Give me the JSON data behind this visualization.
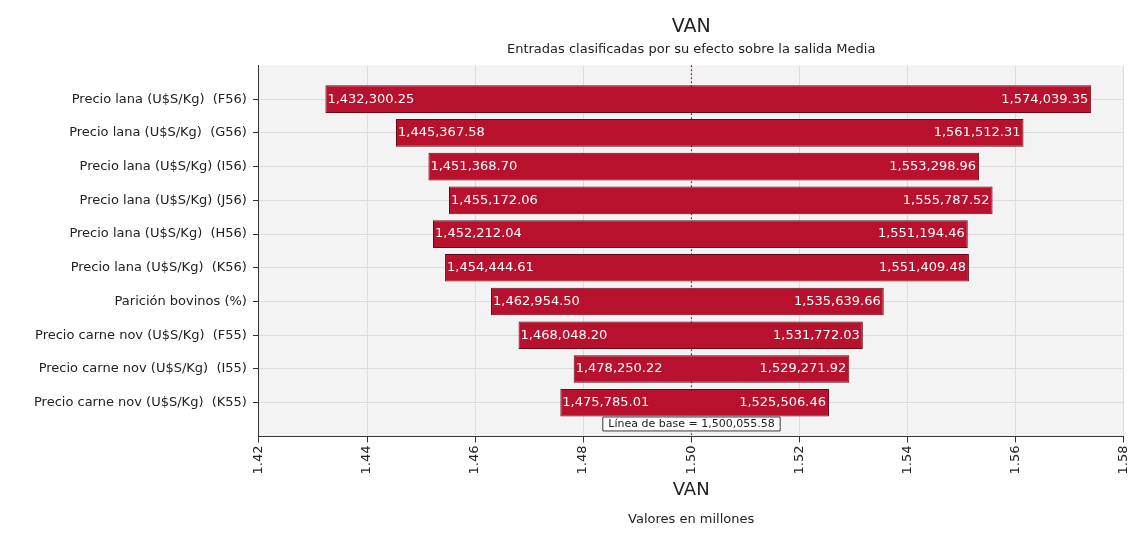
{
  "chart_data": {
    "type": "bar",
    "orientation": "horizontal",
    "title": "VAN",
    "subtitle": "Entradas clasificadas por su efecto sobre la salida Media",
    "xlabel": "VAN",
    "categories": [
      "Precio lana (U$S/Kg)  (F56)",
      "Precio lana (U$S/Kg)  (G56)",
      "Precio lana (U$S/Kg) (I56)",
      "Precio lana (U$S/Kg) (J56)",
      "Precio lana (U$S/Kg)  (H56)",
      "Precio lana (U$S/Kg)  (K56)",
      "Parición bovinos (%)",
      "Precio carne nov (U$S/Kg)  (F55)",
      "Precio carne nov (U$S/Kg)  (I55)",
      "Precio carne nov (U$S/Kg)  (K55)"
    ],
    "base": [
      1.43230025,
      1.44536758,
      1.4513687,
      1.45517206,
      1.45221204,
      1.45444461,
      1.4629545,
      1.4680482,
      1.47825022,
      1.47578501
    ],
    "values": [
      0.1417391,
      0.11614473,
      0.10193026,
      0.10061546,
      0.09898242,
      0.09696487,
      0.07268516,
      0.06372383,
      0.0510217,
      0.04972145
    ],
    "color": "#b8112e",
    "xlim": [
      1.42,
      1.58
    ],
    "xticks": [
      1.42,
      1.44,
      1.46,
      1.48,
      {
        "value": 1.5,
        "label": "1.50"
      },
      1.52,
      1.54,
      1.56,
      1.58
    ],
    "grid": true,
    "ref_lines": [
      {
        "axis": "x",
        "value": 1.50005558,
        "label": "Línea de base = 1,500,055.58",
        "color": "#7a1a2a",
        "line_style": "dotted"
      }
    ],
    "annotations": [
      {
        "text": "1,432,300.25",
        "x": 1.43230025,
        "y": "Precio lana (U$S/Kg)  (F56)"
      },
      {
        "text": "1,574,039.35",
        "x": 1.57403935,
        "y": "Precio lana (U$S/Kg)  (F56)"
      },
      {
        "text": "1,445,367.58",
        "x": 1.44536758,
        "y": "Precio lana (U$S/Kg)  (G56)"
      },
      {
        "text": "1,561,512.31",
        "x": 1.56151231,
        "y": "Precio lana (U$S/Kg)  (G56)"
      },
      {
        "text": "1,451,368.70",
        "x": 1.4513687,
        "y": "Precio lana (U$S/Kg) (I56)"
      },
      {
        "text": "1,553,298.96",
        "x": 1.55329896,
        "y": "Precio lana (U$S/Kg) (I56)"
      },
      {
        "text": "1,455,172.06",
        "x": 1.45517206,
        "y": "Precio lana (U$S/Kg) (J56)"
      },
      {
        "text": "1,555,787.52",
        "x": 1.55578752,
        "y": "Precio lana (U$S/Kg) (J56)"
      },
      {
        "text": "1,452,212.04",
        "x": 1.45221204,
        "y": "Precio lana (U$S/Kg)  (H56)"
      },
      {
        "text": "1,551,194.46",
        "x": 1.55119446,
        "y": "Precio lana (U$S/Kg)  (H56)"
      },
      {
        "text": "1,454,444.61",
        "x": 1.45444461,
        "y": "Precio lana (U$S/Kg)  (K56)"
      },
      {
        "text": "1,551,409.48",
        "x": 1.55140948,
        "y": "Precio lana (U$S/Kg)  (K56)"
      },
      {
        "text": "1,462,954.50",
        "x": 1.4629545,
        "y": "Parición bovinos (%)"
      },
      {
        "text": "1,535,639.66",
        "x": 1.53563966,
        "y": "Parición bovinos (%)"
      },
      {
        "text": "1,468,048.20",
        "x": 1.4680482,
        "y": "Precio carne nov (U$S/Kg)  (F55)"
      },
      {
        "text": "1,531,772.03",
        "x": 1.53177203,
        "y": "Precio carne nov (U$S/Kg)  (F55)"
      },
      {
        "text": "1,478,250.22",
        "x": 1.47825022,
        "y": "Precio carne nov (U$S/Kg)  (I55)"
      },
      {
        "text": "1,529,271.92",
        "x": 1.52927192,
        "y": "Precio carne nov (U$S/Kg)  (I55)"
      },
      {
        "text": "1,475,785.01",
        "x": 1.47578501,
        "y": "Precio carne nov (U$S/Kg)  (K55)"
      },
      {
        "text": "1,525,506.46",
        "x": 1.52550646,
        "y": "Precio carne nov (U$S/Kg)  (K55)"
      },
      "Valores en millones"
    ]
  }
}
